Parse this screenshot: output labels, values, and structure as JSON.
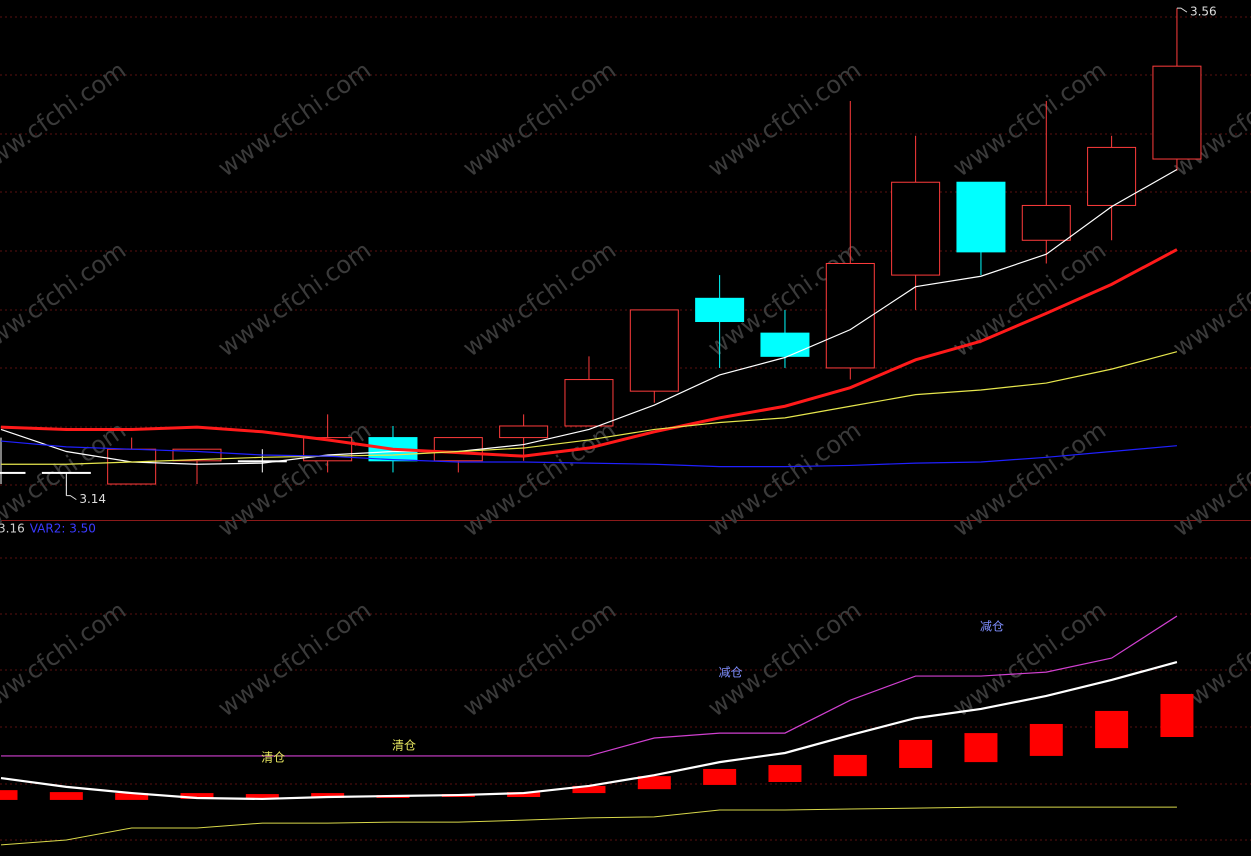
{
  "watermark": "www.cfchi.com",
  "chart_data": [
    {
      "type": "candlestick",
      "categories": [
        null,
        null,
        null,
        null,
        null,
        null,
        null,
        null,
        null,
        null,
        null,
        null,
        null,
        null,
        null,
        null,
        null,
        null,
        null
      ],
      "ylim": [
        3.119,
        3.567
      ],
      "up_color": "#ff3c3c",
      "down_color": "#00ffff",
      "flat_color": "#ffffff",
      "candles": {
        "open": [
          3.16,
          3.16,
          3.15,
          3.17,
          3.17,
          3.17,
          3.19,
          3.17,
          3.19,
          3.2,
          3.23,
          3.31,
          3.28,
          3.25,
          3.33,
          3.41,
          3.36,
          3.39,
          3.43
        ],
        "high": [
          3.19,
          3.16,
          3.19,
          3.18,
          3.18,
          3.21,
          3.2,
          3.19,
          3.21,
          3.26,
          3.3,
          3.33,
          3.3,
          3.48,
          3.45,
          3.41,
          3.48,
          3.45,
          3.56
        ],
        "low": [
          3.15,
          3.14,
          3.15,
          3.15,
          3.16,
          3.16,
          3.16,
          3.16,
          3.17,
          3.2,
          3.22,
          3.25,
          3.25,
          3.24,
          3.3,
          3.33,
          3.34,
          3.36,
          3.42
        ],
        "close": [
          3.16,
          3.16,
          3.18,
          3.18,
          3.17,
          3.19,
          3.17,
          3.19,
          3.2,
          3.24,
          3.3,
          3.29,
          3.26,
          3.34,
          3.41,
          3.35,
          3.39,
          3.44,
          3.51
        ]
      },
      "series": [
        {
          "color": "#ffffff",
          "line_width": 1.2,
          "values": [
            3.197,
            3.178,
            3.169,
            3.167,
            3.168,
            3.175,
            3.178,
            3.178,
            3.184,
            3.197,
            3.218,
            3.244,
            3.259,
            3.283,
            3.32,
            3.329,
            3.348,
            3.389,
            3.421
          ]
        },
        {
          "color": "#ff1a1a",
          "line_width": 3,
          "values": [
            3.199,
            3.197,
            3.197,
            3.199,
            3.195,
            3.188,
            3.18,
            3.177,
            3.174,
            3.181,
            3.195,
            3.207,
            3.217,
            3.233,
            3.257,
            3.273,
            3.297,
            3.322,
            3.352
          ]
        },
        {
          "color": "#e6e64d",
          "line_width": 1.2,
          "values": [
            3.167,
            3.167,
            3.169,
            3.171,
            3.173,
            3.174,
            3.175,
            3.178,
            3.181,
            3.188,
            3.197,
            3.203,
            3.207,
            3.217,
            3.227,
            3.231,
            3.237,
            3.249,
            3.264
          ]
        },
        {
          "color": "#2020ff",
          "line_width": 1.2,
          "values": [
            3.187,
            3.182,
            3.18,
            3.178,
            3.175,
            3.174,
            3.171,
            3.169,
            3.169,
            3.168,
            3.167,
            3.165,
            3.165,
            3.166,
            3.168,
            3.169,
            3.173,
            3.178,
            3.183
          ]
        }
      ],
      "annotations": [
        {
          "text": "3.56",
          "index": 18,
          "at": "high"
        },
        {
          "text": "3.14",
          "index": 1,
          "at": "low"
        }
      ]
    },
    {
      "type": "indicator",
      "header": [
        {
          "text": "3.16",
          "color": "#d0d0d0"
        },
        {
          "text": "VAR2: 3.50",
          "color": "#3a3aff"
        }
      ],
      "categories": [
        null,
        null,
        null,
        null,
        null,
        null,
        null,
        null,
        null,
        null,
        null,
        null,
        null,
        null,
        null,
        null,
        null,
        null,
        null
      ],
      "ylim": [
        0,
        100
      ],
      "bars": {
        "color": "#ff0000",
        "low": [
          17.2,
          17.2,
          17.2,
          17.5,
          17.5,
          17.8,
          17.8,
          18.1,
          18.1,
          19.3,
          20.5,
          21.8,
          22.7,
          24.5,
          27.0,
          28.8,
          30.7,
          33.1,
          36.5
        ],
        "high": [
          20.2,
          19.6,
          19.3,
          19.3,
          19.0,
          19.3,
          18.7,
          19.0,
          19.6,
          21.5,
          24.5,
          26.7,
          27.9,
          31.0,
          35.6,
          37.7,
          40.5,
          44.5,
          49.7
        ]
      },
      "series": [
        {
          "color": "#d040d0",
          "line_width": 1.2,
          "values": [
            30.7,
            30.7,
            30.7,
            30.7,
            30.7,
            30.7,
            30.7,
            30.7,
            30.7,
            30.7,
            36.2,
            37.7,
            37.7,
            47.8,
            55.2,
            55.2,
            56.4,
            60.7,
            73.6
          ]
        },
        {
          "color": "#ffffff",
          "line_width": 2.2,
          "values": [
            23.9,
            21.2,
            19.3,
            17.8,
            17.5,
            18.1,
            18.4,
            18.7,
            19.3,
            21.5,
            24.8,
            28.8,
            31.6,
            37.1,
            42.3,
            45.1,
            49.1,
            54.0,
            59.5
          ]
        },
        {
          "color": "#d8d84a",
          "line_width": 1,
          "values": [
            3.4,
            4.9,
            8.6,
            8.6,
            10.1,
            10.1,
            10.4,
            10.4,
            11.0,
            11.7,
            12.0,
            14.1,
            14.1,
            14.4,
            14.7,
            15.0,
            15.0,
            15.0,
            15.0
          ]
        }
      ],
      "annotations": [
        {
          "text": "清仓",
          "index": 4,
          "value": 30.1,
          "color": "#e8e860"
        },
        {
          "text": "清仓",
          "index": 6,
          "value": 33.7,
          "color": "#e8e860"
        },
        {
          "text": "减仓",
          "index": 11,
          "value": 56.1,
          "color": "#7f8fff"
        },
        {
          "text": "减仓",
          "index": 15,
          "value": 70.2,
          "color": "#7f8fff"
        }
      ]
    }
  ]
}
